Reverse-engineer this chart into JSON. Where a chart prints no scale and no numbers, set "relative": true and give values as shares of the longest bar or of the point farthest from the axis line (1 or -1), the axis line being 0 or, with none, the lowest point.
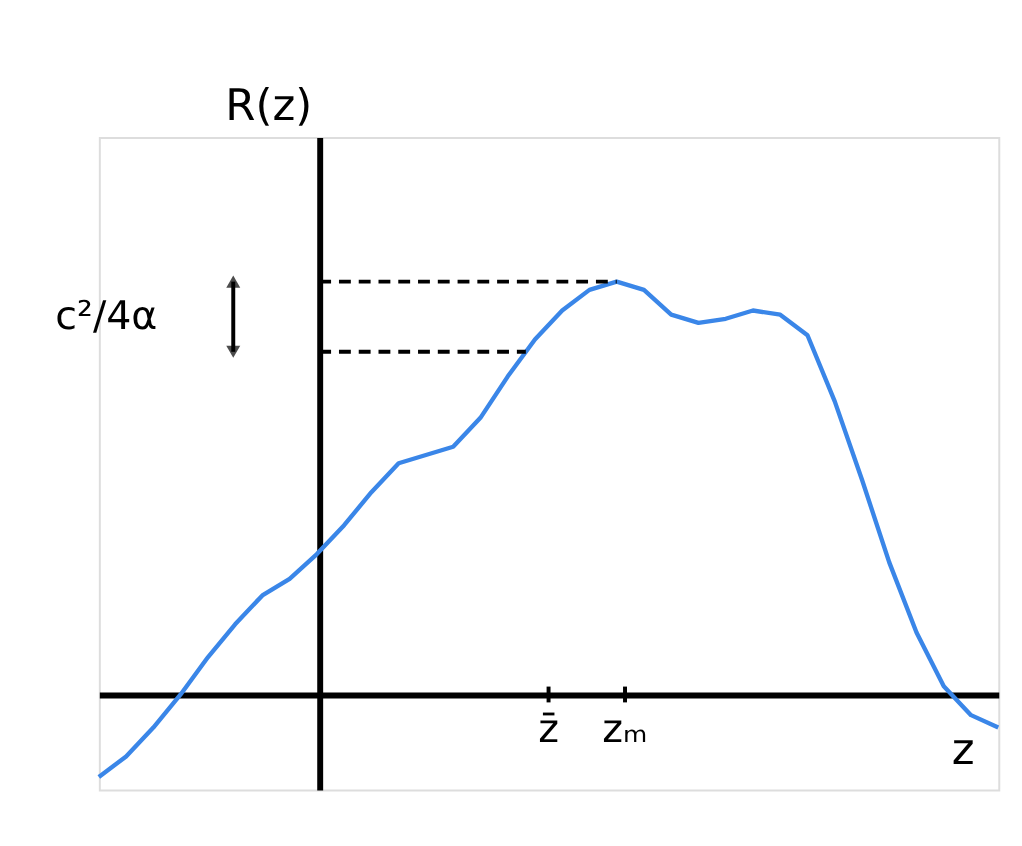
{
  "chart_data": {
    "type": "line",
    "relative": true,
    "xlabel": "z",
    "ylabel": "R(z)",
    "categories": [
      null,
      null,
      null,
      null,
      null,
      null,
      null,
      null,
      null,
      null,
      null,
      null,
      null,
      null,
      null,
      null,
      null,
      null,
      null,
      null,
      null,
      null,
      null,
      null,
      null,
      null,
      null,
      null,
      null,
      null,
      null,
      null,
      null,
      null
    ],
    "series": [
      {
        "color": "#3a86e8",
        "values": [
          -0.2,
          -0.15,
          -0.08,
          0,
          0.09,
          0.17,
          0.24,
          0.28,
          0.34,
          0.41,
          0.49,
          0.56,
          0.58,
          0.6,
          0.67,
          0.77,
          0.86,
          0.93,
          0.98,
          1.0,
          0.98,
          0.92,
          0.9,
          0.91,
          0.93,
          0.92,
          0.87,
          0.71,
          0.52,
          0.32,
          0.15,
          0.02,
          -0.05,
          -0.08
        ]
      }
    ],
    "ref_lines": [
      {
        "axis": "y",
        "value": 1.0,
        "line_style": "dashed",
        "color": "#000000"
      },
      {
        "axis": "y",
        "value": 0.83,
        "line_style": "dashed",
        "color": "#000000"
      }
    ],
    "annotations": [
      "c²/4α",
      "z̄",
      "zₘ"
    ],
    "marker": "none",
    "line_style": "solid"
  }
}
